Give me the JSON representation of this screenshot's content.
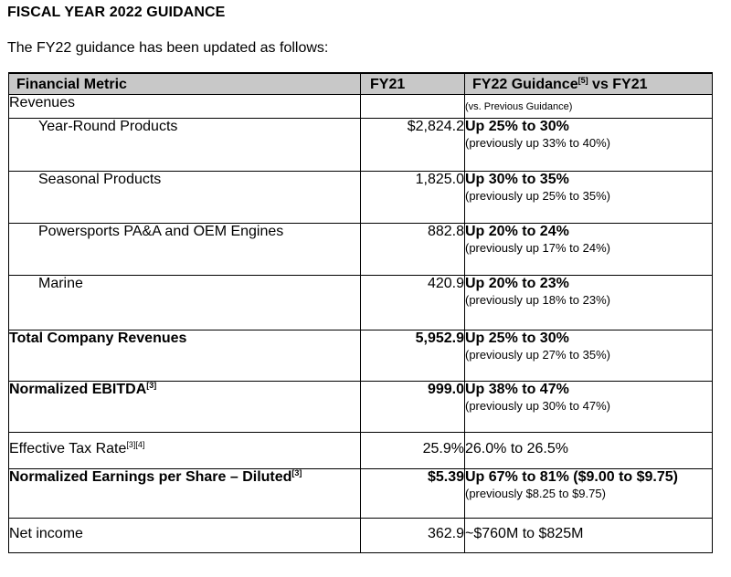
{
  "title": "FISCAL YEAR 2022 GUIDANCE",
  "intro": "The FY22 guidance has been updated as follows:",
  "table": {
    "headers": {
      "metric": "Financial Metric",
      "fy21": "FY21",
      "guidance": "FY22 Guidance",
      "guidance_sup": "[5]",
      "guidance_suffix": " vs FY21"
    },
    "rows": [
      {
        "metric": "Revenues",
        "fy21": "",
        "note": "(vs. Previous Guidance)"
      },
      {
        "metric": "Year-Round Products",
        "fy21": "$2,824.2",
        "guidance": "Up 25% to 30%",
        "previous": "(previously up 33% to 40%)"
      },
      {
        "metric": "Seasonal Products",
        "fy21": "1,825.0",
        "guidance": "Up 30% to 35%",
        "previous": "(previously up 25% to 35%)"
      },
      {
        "metric": "Powersports PA&A and OEM Engines",
        "fy21": "882.8",
        "guidance": "Up 20% to 24%",
        "previous": "(previously up 17% to 24%)"
      },
      {
        "metric": "Marine",
        "fy21": "420.9",
        "guidance": "Up 20% to 23%",
        "previous": "(previously up 18% to 23%)"
      },
      {
        "metric": "Total Company Revenues",
        "fy21": "5,952.9",
        "guidance": "Up 25% to 30%",
        "previous": "(previously up 27% to 35%)"
      },
      {
        "metric": "Normalized EBITDA",
        "metric_sup": "[3]",
        "fy21": "999.0",
        "guidance": "Up 38% to 47%",
        "previous": "(previously up 30% to 47%)"
      },
      {
        "metric": "Effective Tax Rate",
        "metric_sup": "[3][4]",
        "fy21": "25.9%",
        "guidance_plain": "26.0% to 26.5%"
      },
      {
        "metric": "Normalized Earnings per Share – Diluted",
        "metric_sup": "[3]",
        "fy21": "$5.39",
        "guidance": "Up 67% to 81% ($9.00 to $9.75)",
        "previous": "(previously $8.25 to $9.75)"
      },
      {
        "metric": "Net income",
        "fy21": "362.9",
        "guidance_plain": "~$760M to $825M"
      }
    ]
  }
}
